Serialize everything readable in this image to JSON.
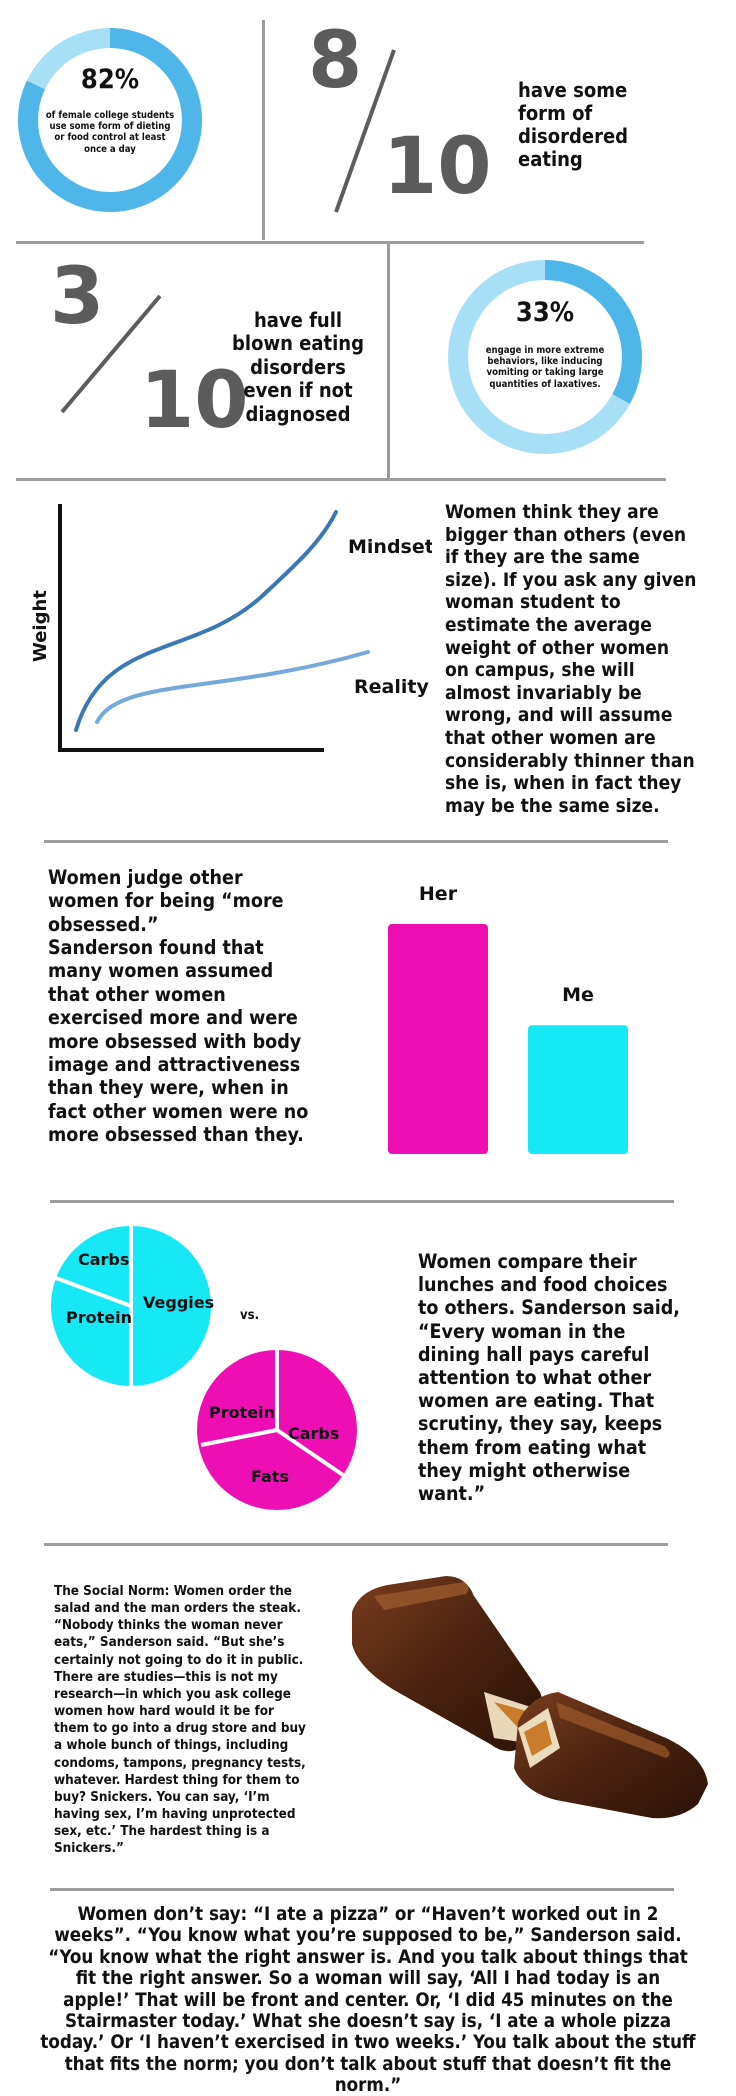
{
  "stat1": {
    "percent": "82%",
    "text": "of female college students use some form of dieting or food control at least once a day",
    "fraction": 0.82
  },
  "stat2": {
    "numerator": "8",
    "denominator": "10",
    "text": "have some form of disordered eating"
  },
  "stat3": {
    "numerator": "3",
    "denominator": "10",
    "text": "have full blown eating disorders even if not diagnosed"
  },
  "stat4": {
    "percent": "33%",
    "text": "engage in more extreme behaviors, like inducing vomiting or taking large quantities of laxatives.",
    "fraction": 0.33
  },
  "weight_chart": {
    "ylabel": "Weight",
    "series": [
      {
        "name": "Mindset"
      },
      {
        "name": "Reality"
      }
    ],
    "text": "Women think they are bigger than others (even if they are the same size). If you ask any given woman student to estimate the average weight of other women on campus, she will almost invariably be wrong, and will assume that other women are considerably thinner than she is, when in fact they may be the same size."
  },
  "obsessed": {
    "heading": "Women judge other women for being “more obsessed.”",
    "text": "Sanderson found that many women assumed that other women exercised more and were more obsessed with body image and attractiveness than they were, when in fact other women were no more obsessed than they."
  },
  "chart_data": {
    "type": "bar",
    "categories": [
      "Her",
      "Me"
    ],
    "values": [
      1.0,
      0.56
    ],
    "colors": [
      "#ee0fb4",
      "#16e8f5"
    ]
  },
  "food": {
    "pie1": [
      "Carbs",
      "Protein",
      "Veggies"
    ],
    "vs": "vs.",
    "pie2": [
      "Protein",
      "Carbs",
      "Fats"
    ],
    "text": "Women compare their lunches and food choices to others. Sanderson said, “Every woman in the dining hall pays careful attention to what other women are eating. That scrutiny, they say, keeps them from eating what they might otherwise want.”",
    "colors": [
      "#16e8f5",
      "#ee0fb4"
    ]
  },
  "social_norm": {
    "text": "The Social Norm: Women order the salad and the man orders the steak. “Nobody thinks the woman never eats,” Sanderson said. “But she’s certainly not going to do it in public. There are studies—this is not my research—in which you ask college women how hard would it be for them to go into a drug store and buy a whole bunch of things, including condoms, tampons, pregnancy tests, whatever. Hardest thing for them to buy? Snickers. You can say, ‘I’m having sex, I’m having unprotected sex, etc.’ The hardest thing is a Snickers.”"
  },
  "footer": {
    "text": "Women don’t say: “I ate a pizza” or “Haven’t worked out in 2 weeks”. “You know what you’re supposed to be,” Sanderson said. “You know what the right answer is. And you talk about things that fit the right answer. So a woman will say, ‘All I had today is an apple!’ That will be front and center. Or, ‘I did 45 minutes on the Stairmaster today.’ What she doesn’t say is, ‘I ate a whole pizza today.’ Or ‘I haven’t exercised in two weeks.’ You talk about the stuff that fits the norm; you don’t talk about stuff that doesn’t fit the norm.”"
  },
  "colors": {
    "ring_light": "#a7dff7",
    "ring_dark": "#4fb6ea",
    "line_dark": "#3a78b5",
    "line_light": "#75a9da",
    "divider": "#9c9c9c",
    "num_gray": "#5c5c5c"
  }
}
